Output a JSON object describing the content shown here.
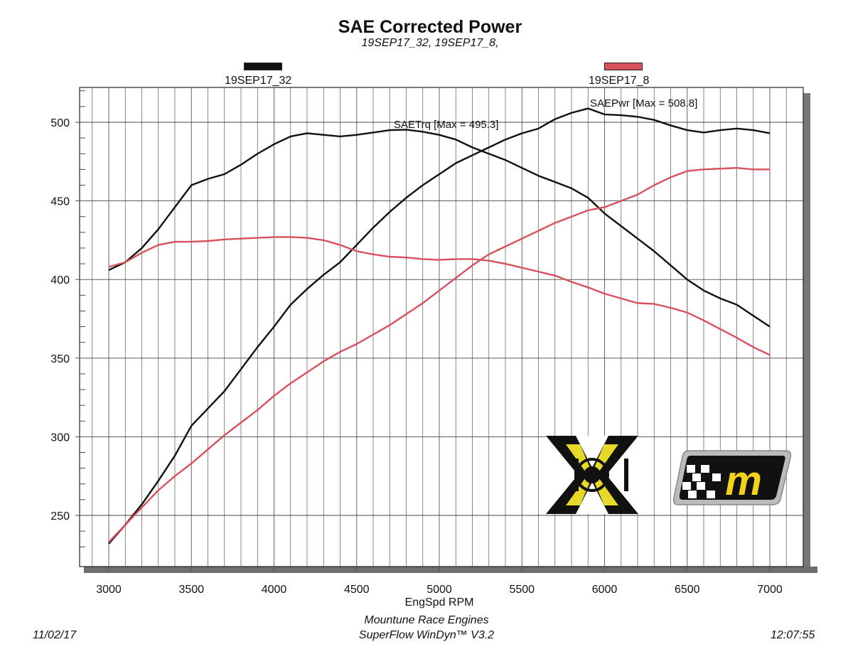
{
  "chart_data": {
    "type": "line",
    "title": "SAE Corrected Power",
    "subtitle": "19SEP17_32, 19SEP17_8,",
    "xlabel": "EngSpd RPM",
    "ylabel": "",
    "xlim": [
      2824,
      7200
    ],
    "ylim": [
      217.5,
      522
    ],
    "xticks": [
      3000,
      3500,
      4000,
      4500,
      5000,
      5500,
      6000,
      6500,
      7000
    ],
    "yticks": [
      250,
      300,
      350,
      400,
      450,
      500
    ],
    "grid": true,
    "legend": [
      {
        "name": "19SEP17_32",
        "color": "#111111"
      },
      {
        "name": "19SEP17_8",
        "color": "#d9505d"
      }
    ],
    "annotations": [
      {
        "text": "SAETrq [Max = 495.3]",
        "x": 4700,
        "y": 495.3
      },
      {
        "text": "SAEPwr [Max = 508.8]",
        "x": 5900,
        "y": 508.8
      }
    ],
    "x": [
      3000,
      3100,
      3200,
      3300,
      3400,
      3500,
      3600,
      3700,
      3800,
      3900,
      4000,
      4100,
      4200,
      4300,
      4400,
      4500,
      4600,
      4700,
      4800,
      4900,
      5000,
      5100,
      5200,
      5300,
      5400,
      5500,
      5600,
      5700,
      5800,
      5900,
      6000,
      6100,
      6200,
      6300,
      6400,
      6500,
      6600,
      6700,
      6800,
      6900,
      7000
    ],
    "series": [
      {
        "name": "19SEP17_32 SAETrq",
        "run": "19SEP17_32",
        "color": "#111111",
        "values": [
          406,
          411,
          420,
          432,
          446,
          460,
          464,
          467,
          473,
          480,
          486,
          491,
          493,
          492,
          491,
          492,
          493.5,
          495,
          495.3,
          494,
          492,
          489,
          484,
          480,
          476,
          471,
          466,
          462,
          458,
          452,
          442,
          434,
          426,
          418,
          409,
          400,
          393,
          388,
          384,
          377,
          370
        ]
      },
      {
        "name": "19SEP17_32 SAEPwr",
        "run": "19SEP17_32",
        "color": "#111111",
        "values": [
          232,
          244,
          257,
          272,
          288,
          307,
          318,
          329,
          343,
          357,
          370,
          384,
          394,
          403,
          411,
          422,
          433,
          443,
          452,
          460,
          467,
          474,
          479,
          484,
          489,
          493,
          496,
          502,
          506,
          508.8,
          505,
          504.5,
          503.5,
          501.5,
          498,
          495,
          493.5,
          495,
          496,
          495,
          493
        ]
      },
      {
        "name": "19SEP17_8 SAETrq",
        "run": "19SEP17_8",
        "color": "#d9505d",
        "values": [
          408,
          411,
          417,
          422,
          424,
          424,
          424.5,
          425.5,
          426,
          426.5,
          427,
          427,
          426.5,
          425,
          422,
          418,
          416,
          414.5,
          414,
          413,
          412.5,
          413,
          413,
          412,
          410,
          407.5,
          405,
          402.5,
          398.5,
          395,
          391,
          388,
          385,
          384.5,
          382,
          379,
          374,
          368.5,
          363,
          357,
          352
        ]
      },
      {
        "name": "19SEP17_8 SAEPwr",
        "run": "19SEP17_8",
        "color": "#d9505d",
        "values": [
          233,
          244,
          255,
          266,
          275,
          283,
          292,
          301,
          309,
          317,
          326,
          334,
          341,
          348,
          354,
          359,
          365,
          371,
          378,
          385,
          393,
          401,
          409,
          416,
          421,
          426,
          431,
          436,
          440,
          444,
          446,
          450,
          454,
          460,
          465,
          469,
          470,
          470.5,
          471,
          470,
          470
        ]
      }
    ]
  },
  "footer": {
    "date": "11/02/17",
    "time": "12:07:55",
    "company": "Mountune Race Engines",
    "software": "SuperFlow WinDyn™ V3.2"
  },
  "logos": {
    "left": "XDI",
    "right": "m"
  }
}
